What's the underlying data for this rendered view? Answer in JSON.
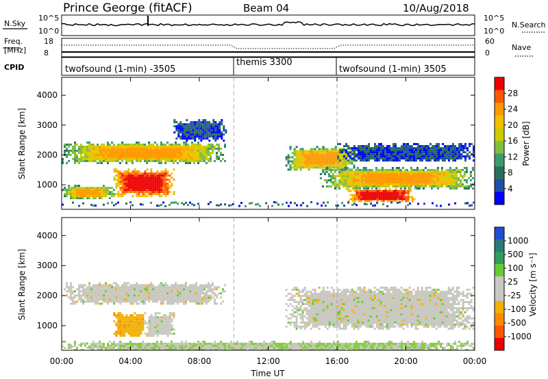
{
  "header": {
    "station": "Prince George (fitACF)",
    "beam": "Beam 04",
    "date": "10/Aug/2018"
  },
  "noise_panel": {
    "left_label": "N.Sky",
    "right_label": "N.Search",
    "left_ticks": [
      "10^5",
      "10^0"
    ],
    "right_ticks": [
      "10^5",
      "10^0"
    ]
  },
  "freq_panel": {
    "left_label_1": "Freq.",
    "left_label_2": "[MHz]",
    "right_label": "Nave",
    "left_ticks": [
      "18",
      "8"
    ],
    "right_ticks": [
      "60",
      "0"
    ]
  },
  "cpid_panel": {
    "label": "CPID",
    "segments": [
      {
        "label": "twofsound (1-min) -3505",
        "start_hour": 0
      },
      {
        "label": "themis 3300",
        "start_hour": 10
      },
      {
        "label": "twofsound (1-min) 3505",
        "start_hour": 16
      }
    ]
  },
  "power_panel": {
    "ylabel": "Slant Range [km]",
    "colorbar_label": "Power [dB]",
    "colorbar_ticks": [
      "28",
      "24",
      "20",
      "16",
      "12",
      "8",
      "4"
    ],
    "colorbar_colors": [
      "#ee0000",
      "#ff5500",
      "#ff9900",
      "#f2c000",
      "#cccc00",
      "#7fbf3f",
      "#3c9b6e",
      "#2a6e5a",
      "#1f4fa8",
      "#0000ff"
    ]
  },
  "velocity_panel": {
    "ylabel": "Slant Range [km]",
    "colorbar_label": "Velocity [m s⁻¹]",
    "colorbar_ticks": [
      "1000",
      "500",
      "100",
      "25",
      "-25",
      "-100",
      "-500",
      "-1000"
    ],
    "colorbar_colors": [
      "#1f4fd0",
      "#2a7a7a",
      "#2e9e5a",
      "#66cc33",
      "#c8c8c0",
      "#c8c8c0",
      "#f2b000",
      "#ff8800",
      "#ff5500",
      "#ee0000"
    ]
  },
  "x_axis": {
    "label": "Time UT",
    "ticks": [
      "00:00",
      "04:00",
      "08:00",
      "12:00",
      "16:00",
      "20:00",
      "00:00"
    ]
  },
  "chart_data": {
    "type": "heatmap",
    "x_range_hours": [
      0,
      24
    ],
    "y_range_km": [
      180,
      4600
    ],
    "y_ticks_km": [
      1000,
      2000,
      3000,
      4000
    ],
    "vertical_markers_hours": [
      10,
      16
    ],
    "power_regions": [
      {
        "t0": 0,
        "t1": 9.5,
        "r0": 1750,
        "r1": 2450,
        "level": "medium"
      },
      {
        "t0": 3.0,
        "t1": 6.5,
        "r0": 650,
        "r1": 1550,
        "level": "high"
      },
      {
        "t0": 0,
        "t1": 3,
        "r0": 550,
        "r1": 1000,
        "level": "medium"
      },
      {
        "t0": 6.5,
        "t1": 9.5,
        "r0": 2500,
        "r1": 3200,
        "level": "low"
      },
      {
        "t0": 13,
        "t1": 17,
        "r0": 1500,
        "r1": 2300,
        "level": "medium"
      },
      {
        "t0": 15,
        "t1": 24,
        "r0": 900,
        "r1": 1600,
        "level": "medium"
      },
      {
        "t0": 16.5,
        "t1": 20.5,
        "r0": 450,
        "r1": 900,
        "level": "high"
      },
      {
        "t0": 16,
        "t1": 24,
        "r0": 1800,
        "r1": 2400,
        "level": "low"
      }
    ],
    "velocity_regions": [
      {
        "t0": 0,
        "t1": 9.5,
        "r0": 1750,
        "r1": 2450,
        "class": "-25..25"
      },
      {
        "t0": 3.0,
        "t1": 4.8,
        "r0": 650,
        "r1": 1450,
        "class": "-100..-25"
      },
      {
        "t0": 4.8,
        "t1": 6.5,
        "r0": 650,
        "r1": 1450,
        "class": "-25..25"
      },
      {
        "t0": 13,
        "t1": 24,
        "r0": 900,
        "r1": 2300,
        "class": "-25..25"
      },
      {
        "t0": 0,
        "t1": 24,
        "r0": 180,
        "r1": 500,
        "class": "25..100"
      }
    ]
  }
}
